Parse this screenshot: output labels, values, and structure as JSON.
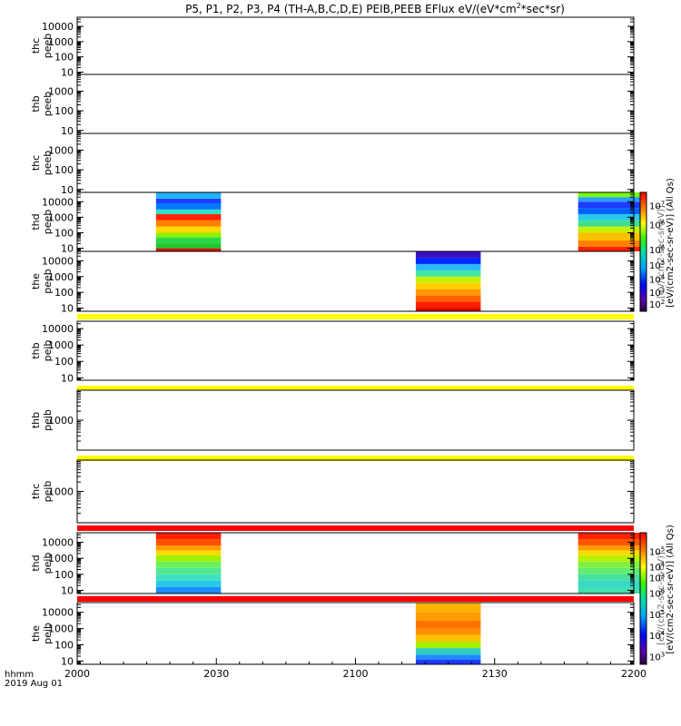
{
  "chart_data": {
    "type": "heatmap",
    "title": "P5, P1, P2, P3, P4 (TH-A,B,C,D,E) PEIB,PEEB EFlux eV/(eV*cm^2*sec*sr)",
    "title_parts": {
      "before_sup": "P5, P1, P2, P3, P4 (TH-A,B,C,D,E) PEIB,PEEB EFlux eV/(eV*cm",
      "sup": "2",
      "after_sup": "*sec*sr)"
    },
    "x_label_line1": "hhmm",
    "x_label_line2": "2019 Aug 01",
    "x_ticks": [
      "2000",
      "2030",
      "2100",
      "2130",
      "2200"
    ],
    "x_range_minutes": [
      0,
      120
    ],
    "panels": [
      {
        "label_top": "thc",
        "label_bottom": "peeb",
        "ticks": [
          "10",
          "100",
          "1000",
          "10000"
        ],
        "ylim_log10": [
          0.85,
          4.6
        ],
        "blocks": []
      },
      {
        "label_top": "thb",
        "label_bottom": "peeb",
        "ticks": [
          "10",
          "100",
          "1000"
        ],
        "ylim_log10": [
          0.85,
          3.85
        ],
        "blocks": []
      },
      {
        "label_top": "thc",
        "label_bottom": "peeb",
        "ticks": [
          "10",
          "100",
          "1000"
        ],
        "ylim_log10": [
          0.85,
          3.85
        ],
        "blocks": []
      },
      {
        "label_top": "thd",
        "label_bottom": "peeb",
        "ticks": [
          "10",
          "100",
          "1000",
          "10000"
        ],
        "ylim_log10": [
          0.8,
          4.6
        ],
        "blocks": [
          {
            "t0": 17,
            "t1": 31,
            "bands": [
              {
                "e0": 0.8,
                "e1": 1.0,
                "color": "#d41010"
              },
              {
                "e0": 1.0,
                "e1": 1.3,
                "color": "#1ec830"
              },
              {
                "e0": 1.3,
                "e1": 1.7,
                "color": "#28d84a"
              },
              {
                "e0": 1.7,
                "e1": 2.0,
                "color": "#8cf000"
              },
              {
                "e0": 2.0,
                "e1": 2.4,
                "color": "#ffd800"
              },
              {
                "e0": 2.4,
                "e1": 2.8,
                "color": "#ff8000"
              },
              {
                "e0": 2.8,
                "e1": 3.2,
                "color": "#ff2400"
              },
              {
                "e0": 3.2,
                "e1": 3.5,
                "color": "#30e0c8"
              },
              {
                "e0": 3.5,
                "e1": 3.9,
                "color": "#0078ff"
              },
              {
                "e0": 3.9,
                "e1": 4.2,
                "color": "#1e3cff"
              },
              {
                "e0": 4.2,
                "e1": 4.6,
                "color": "#22b4ff"
              }
            ]
          },
          {
            "t0": 108,
            "t1": 122,
            "bands": [
              {
                "e0": 0.8,
                "e1": 1.1,
                "color": "#ff2000"
              },
              {
                "e0": 1.1,
                "e1": 1.5,
                "color": "#ff8000"
              },
              {
                "e0": 1.5,
                "e1": 2.0,
                "color": "#ffc000"
              },
              {
                "e0": 2.0,
                "e1": 2.4,
                "color": "#c8f000"
              },
              {
                "e0": 2.4,
                "e1": 2.8,
                "color": "#40e090"
              },
              {
                "e0": 2.8,
                "e1": 3.2,
                "color": "#28c8e8"
              },
              {
                "e0": 3.2,
                "e1": 3.6,
                "color": "#0060ff"
              },
              {
                "e0": 3.6,
                "e1": 4.0,
                "color": "#1e3cff"
              },
              {
                "e0": 4.0,
                "e1": 4.3,
                "color": "#2c9cff"
              },
              {
                "e0": 4.3,
                "e1": 4.6,
                "color": "#78ff00"
              }
            ]
          }
        ]
      },
      {
        "label_top": "the",
        "label_bottom": "peeb",
        "ticks": [
          "10",
          "100",
          "1000",
          "10000"
        ],
        "ylim_log10": [
          0.8,
          4.6
        ],
        "blocks": [
          {
            "t0": 73,
            "t1": 87,
            "bands": [
              {
                "e0": 0.8,
                "e1": 1.0,
                "color": "#d40000"
              },
              {
                "e0": 1.0,
                "e1": 1.4,
                "color": "#ff2000"
              },
              {
                "e0": 1.4,
                "e1": 1.8,
                "color": "#ff6000"
              },
              {
                "e0": 1.8,
                "e1": 2.2,
                "color": "#ff9800"
              },
              {
                "e0": 2.2,
                "e1": 2.6,
                "color": "#ffd000"
              },
              {
                "e0": 2.6,
                "e1": 3.0,
                "color": "#c8f000"
              },
              {
                "e0": 3.0,
                "e1": 3.4,
                "color": "#40e8a0"
              },
              {
                "e0": 3.4,
                "e1": 3.8,
                "color": "#28b8ff"
              },
              {
                "e0": 3.8,
                "e1": 4.2,
                "color": "#0028ff"
              },
              {
                "e0": 4.2,
                "e1": 4.6,
                "color": "#3a10c0"
              }
            ]
          }
        ]
      },
      {
        "label_top": "thb",
        "label_bottom": "peib",
        "ticks": [
          "10",
          "100",
          "1000",
          "10000"
        ],
        "ylim_log10": [
          0.85,
          4.45
        ],
        "blocks": []
      },
      {
        "label_top": "thb",
        "label_bottom": "peib",
        "ticks": [
          "1000"
        ],
        "ylim_log10": [
          2.0,
          4.0
        ],
        "blocks": []
      },
      {
        "label_top": "thc",
        "label_bottom": "peib",
        "ticks": [
          "1000"
        ],
        "ylim_log10": [
          2.0,
          4.0
        ],
        "blocks": []
      },
      {
        "label_top": "thd",
        "label_bottom": "peib",
        "ticks": [
          "10",
          "100",
          "1000",
          "10000"
        ],
        "ylim_log10": [
          0.8,
          4.6
        ],
        "blocks": [
          {
            "t0": 17,
            "t1": 31,
            "bands": [
              {
                "e0": 0.8,
                "e1": 1.2,
                "color": "#1e8cff"
              },
              {
                "e0": 1.2,
                "e1": 1.6,
                "color": "#28c8e8"
              },
              {
                "e0": 1.6,
                "e1": 2.0,
                "color": "#40e0c0"
              },
              {
                "e0": 2.0,
                "e1": 2.4,
                "color": "#50e890"
              },
              {
                "e0": 2.4,
                "e1": 2.8,
                "color": "#68f060"
              },
              {
                "e0": 2.8,
                "e1": 3.2,
                "color": "#a0f000"
              },
              {
                "e0": 3.2,
                "e1": 3.5,
                "color": "#ffd800"
              },
              {
                "e0": 3.5,
                "e1": 3.8,
                "color": "#ff9c00"
              },
              {
                "e0": 3.8,
                "e1": 4.2,
                "color": "#ff5000"
              },
              {
                "e0": 4.2,
                "e1": 4.6,
                "color": "#ff2000"
              }
            ]
          },
          {
            "t0": 108,
            "t1": 122,
            "bands": [
              {
                "e0": 0.8,
                "e1": 1.2,
                "color": "#40e0b0"
              },
              {
                "e0": 1.2,
                "e1": 1.6,
                "color": "#38d8c8"
              },
              {
                "e0": 1.6,
                "e1": 2.0,
                "color": "#48e0a0"
              },
              {
                "e0": 2.0,
                "e1": 2.4,
                "color": "#60ec70"
              },
              {
                "e0": 2.4,
                "e1": 2.8,
                "color": "#80f040"
              },
              {
                "e0": 2.8,
                "e1": 3.2,
                "color": "#b8f000"
              },
              {
                "e0": 3.2,
                "e1": 3.5,
                "color": "#ffd800"
              },
              {
                "e0": 3.5,
                "e1": 3.8,
                "color": "#ff9c00"
              },
              {
                "e0": 3.8,
                "e1": 4.2,
                "color": "#ff5400"
              },
              {
                "e0": 4.2,
                "e1": 4.6,
                "color": "#ff2400"
              }
            ]
          }
        ]
      },
      {
        "label_top": "the",
        "label_bottom": "peib",
        "ticks": [
          "10",
          "100",
          "1000",
          "10000"
        ],
        "ylim_log10": [
          0.8,
          4.6
        ],
        "blocks": [
          {
            "t0": 73,
            "t1": 87,
            "bands": [
              {
                "e0": 0.8,
                "e1": 1.1,
                "color": "#1e3cff"
              },
              {
                "e0": 1.1,
                "e1": 1.4,
                "color": "#1e8cff"
              },
              {
                "e0": 1.4,
                "e1": 1.8,
                "color": "#30d0c0"
              },
              {
                "e0": 1.8,
                "e1": 2.2,
                "color": "#a8f000"
              },
              {
                "e0": 2.2,
                "e1": 2.6,
                "color": "#ffc000"
              },
              {
                "e0": 2.6,
                "e1": 3.0,
                "color": "#ff9000"
              },
              {
                "e0": 3.0,
                "e1": 3.5,
                "color": "#ff7400"
              },
              {
                "e0": 3.5,
                "e1": 4.0,
                "color": "#ff9c00"
              },
              {
                "e0": 4.0,
                "e1": 4.6,
                "color": "#ffb000"
              }
            ]
          }
        ]
      }
    ],
    "separators": [
      {
        "after_panel": 4,
        "color": "#ffff00"
      },
      {
        "after_panel": 5,
        "color": "#ffff00"
      },
      {
        "after_panel": 6,
        "color": "#ffff00"
      },
      {
        "after_panel": 7,
        "color": "#ff0000"
      },
      {
        "after_panel": 8,
        "color": "#ff0000"
      }
    ],
    "colorbars": [
      {
        "label": "[eV/(cm2-sec-sr-eV)] (All Qs)",
        "overlap_label": "[eV/(cm2-sec-sr-eV)]",
        "ticks": [
          {
            "base": "10",
            "exp": "2",
            "f": 0.06
          },
          {
            "base": "10",
            "exp": "3",
            "f": 0.16
          },
          {
            "base": "10",
            "exp": "4",
            "f": 0.27
          },
          {
            "base": "10",
            "exp": "5",
            "f": 0.39
          },
          {
            "base": "10",
            "exp": "6",
            "f": 0.52
          },
          {
            "base": "10",
            "exp": "6",
            "f": 0.73
          },
          {
            "base": "10",
            "exp": "7",
            "f": 0.89
          }
        ]
      },
      {
        "label": "[eV/(cm2-sec-sr-eV)] (All Qs)",
        "overlap_label": "[eV/(cm2-sec-sr-eV)]",
        "ticks": [
          {
            "base": "10",
            "exp": "3",
            "f": 0.06
          },
          {
            "base": "10",
            "exp": "4",
            "f": 0.22
          },
          {
            "base": "10",
            "exp": "5",
            "f": 0.38
          },
          {
            "base": "10",
            "exp": "6",
            "f": 0.54
          },
          {
            "base": "10",
            "exp": "3",
            "f": 0.66
          },
          {
            "base": "10",
            "exp": "4",
            "f": 0.74
          },
          {
            "base": "10",
            "exp": "5",
            "f": 0.86
          }
        ]
      }
    ]
  }
}
